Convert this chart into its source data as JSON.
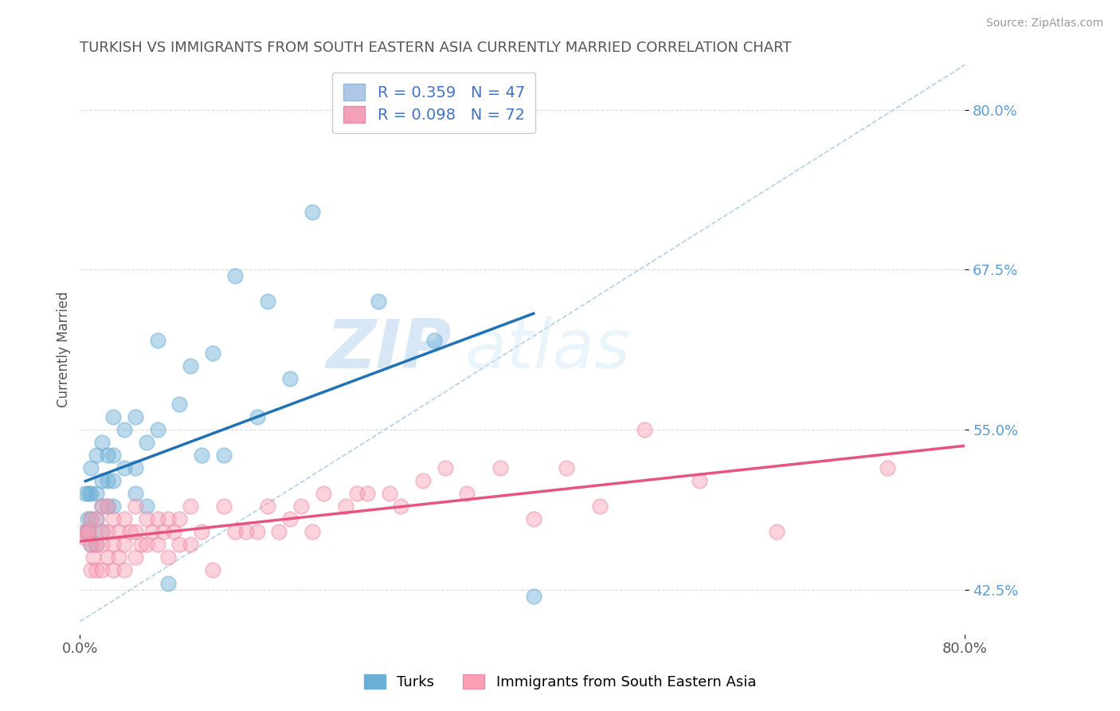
{
  "title": "TURKISH VS IMMIGRANTS FROM SOUTH EASTERN ASIA CURRENTLY MARRIED CORRELATION CHART",
  "source_text": "Source: ZipAtlas.com",
  "ylabel": "Currently Married",
  "watermark_zip": "ZIP",
  "watermark_atlas": "atlas",
  "background_color": "#ffffff",
  "title_color": "#555555",
  "axis_label_color": "#5b9bd5",
  "grid_color": "#cccccc",
  "xmin": 0.0,
  "xmax": 0.8,
  "ymin": 0.39,
  "ymax": 0.835,
  "yticks": [
    0.425,
    0.55,
    0.675,
    0.8
  ],
  "ytick_labels": [
    "42.5%",
    "55.0%",
    "67.5%",
    "80.0%"
  ],
  "xticks": [
    0.0,
    0.8
  ],
  "xtick_labels": [
    "0.0%",
    "80.0%"
  ],
  "series1_color": "#6baed6",
  "series2_color": "#fa9fb5",
  "series1_label": "Turks",
  "series2_label": "Immigrants from South Eastern Asia",
  "series1_R": "0.359",
  "series1_N": "47",
  "series2_R": "0.098",
  "series2_N": "72",
  "series1_line_color": "#2171b5",
  "series2_line_color": "#e75480",
  "diag_line_color": "#aacbe8",
  "series1_x": [
    0.005,
    0.005,
    0.007,
    0.008,
    0.008,
    0.01,
    0.01,
    0.01,
    0.01,
    0.015,
    0.015,
    0.015,
    0.015,
    0.02,
    0.02,
    0.02,
    0.02,
    0.025,
    0.025,
    0.025,
    0.03,
    0.03,
    0.03,
    0.03,
    0.04,
    0.04,
    0.05,
    0.05,
    0.05,
    0.06,
    0.06,
    0.07,
    0.07,
    0.08,
    0.09,
    0.1,
    0.11,
    0.12,
    0.13,
    0.14,
    0.16,
    0.17,
    0.19,
    0.21,
    0.27,
    0.32,
    0.41
  ],
  "series1_y": [
    0.47,
    0.5,
    0.48,
    0.47,
    0.5,
    0.46,
    0.48,
    0.5,
    0.52,
    0.46,
    0.48,
    0.5,
    0.53,
    0.47,
    0.49,
    0.51,
    0.54,
    0.49,
    0.51,
    0.53,
    0.49,
    0.51,
    0.53,
    0.56,
    0.52,
    0.55,
    0.5,
    0.52,
    0.56,
    0.49,
    0.54,
    0.55,
    0.62,
    0.43,
    0.57,
    0.6,
    0.53,
    0.61,
    0.53,
    0.67,
    0.56,
    0.65,
    0.59,
    0.72,
    0.65,
    0.62,
    0.42
  ],
  "series2_x": [
    0.003,
    0.005,
    0.007,
    0.008,
    0.01,
    0.01,
    0.01,
    0.012,
    0.015,
    0.015,
    0.015,
    0.02,
    0.02,
    0.02,
    0.02,
    0.025,
    0.025,
    0.025,
    0.03,
    0.03,
    0.03,
    0.035,
    0.035,
    0.04,
    0.04,
    0.04,
    0.045,
    0.05,
    0.05,
    0.05,
    0.055,
    0.06,
    0.06,
    0.065,
    0.07,
    0.07,
    0.075,
    0.08,
    0.08,
    0.085,
    0.09,
    0.09,
    0.1,
    0.1,
    0.11,
    0.12,
    0.13,
    0.14,
    0.15,
    0.16,
    0.17,
    0.18,
    0.19,
    0.2,
    0.21,
    0.22,
    0.24,
    0.25,
    0.26,
    0.28,
    0.29,
    0.31,
    0.33,
    0.35,
    0.38,
    0.41,
    0.44,
    0.47,
    0.51,
    0.56,
    0.63,
    0.73
  ],
  "series2_y": [
    0.47,
    0.465,
    0.47,
    0.47,
    0.44,
    0.46,
    0.48,
    0.45,
    0.44,
    0.46,
    0.48,
    0.44,
    0.46,
    0.47,
    0.49,
    0.45,
    0.47,
    0.49,
    0.44,
    0.46,
    0.48,
    0.45,
    0.47,
    0.44,
    0.46,
    0.48,
    0.47,
    0.45,
    0.47,
    0.49,
    0.46,
    0.46,
    0.48,
    0.47,
    0.46,
    0.48,
    0.47,
    0.45,
    0.48,
    0.47,
    0.46,
    0.48,
    0.46,
    0.49,
    0.47,
    0.44,
    0.49,
    0.47,
    0.47,
    0.47,
    0.49,
    0.47,
    0.48,
    0.49,
    0.47,
    0.5,
    0.49,
    0.5,
    0.5,
    0.5,
    0.49,
    0.51,
    0.52,
    0.5,
    0.52,
    0.48,
    0.52,
    0.49,
    0.55,
    0.51,
    0.47,
    0.52
  ],
  "legend_box_color1": "#aec7e8",
  "legend_box_color2": "#f4a0b8",
  "legend_text_color": "#4472c4",
  "legend_N_color": "#404040"
}
